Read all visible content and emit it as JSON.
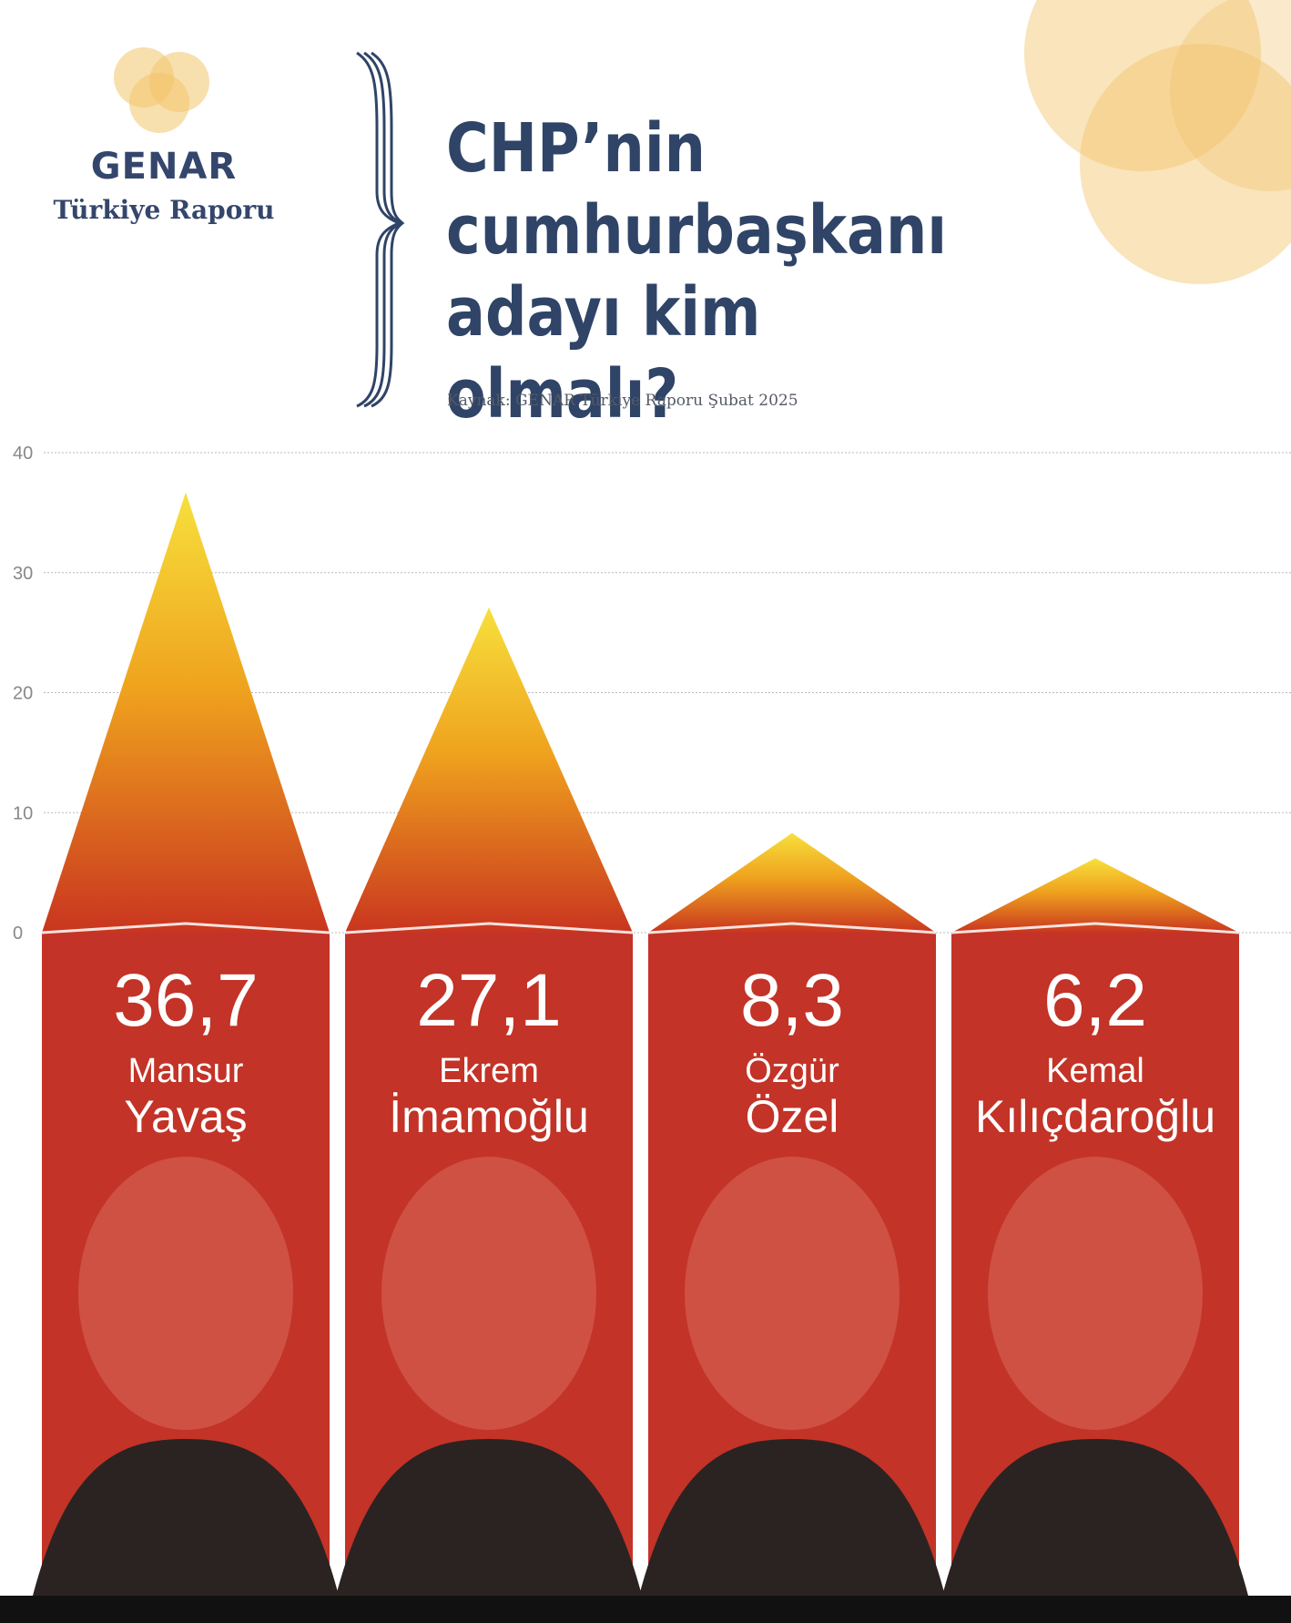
{
  "brand": {
    "name": "GENAR",
    "subtitle": "Türkiye Raporu"
  },
  "header": {
    "title_lines": [
      "CHP’nin",
      "cumhurbaşkanı",
      "adayı kim olmalı?"
    ],
    "source": "Kaynak: GENAR Türkiye Raporu Şubat 2025"
  },
  "colors": {
    "bar_red": "#c33327",
    "peak_top": "#f7e03c",
    "peak_mid": "#efa21e",
    "peak_base": "#c9351f",
    "title_navy": "#2f4467",
    "accent_circle": "#f2c46b"
  },
  "chart_data": {
    "type": "bar",
    "title": "CHP’nin cumhurbaşkanı adayı kim olmalı?",
    "ylim": [
      0,
      40
    ],
    "yticks": [
      0,
      10,
      20,
      30,
      40
    ],
    "grid": true,
    "categories": [
      "Mansur Yavaş",
      "Ekrem İmamoğlu",
      "Özgür Özel",
      "Kemal Kılıçdaroğlu"
    ],
    "values": [
      36.7,
      27.1,
      8.3,
      6.2
    ],
    "value_labels": [
      "36,7",
      "27,1",
      "8,3",
      "6,2"
    ],
    "first_names": [
      "Mansur",
      "Ekrem",
      "Özgür",
      "Kemal"
    ],
    "last_names": [
      "Yavaş",
      "İmamoğlu",
      "Özel",
      "Kılıçdaroğlu"
    ]
  }
}
